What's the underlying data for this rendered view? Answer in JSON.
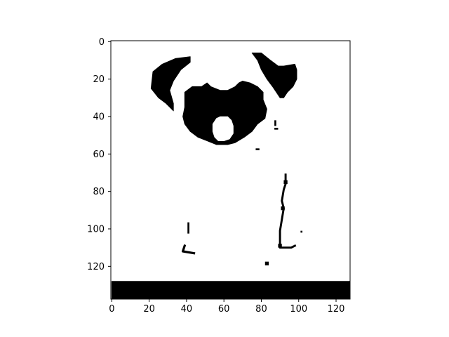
{
  "chart_data": {
    "type": "heatmap",
    "title": "",
    "xlabel": "",
    "ylabel": "",
    "colormap": "binary",
    "colors": {
      "background": "#ffffff",
      "ink": "#000000"
    },
    "image_shape": [
      138,
      128
    ],
    "xlim": [
      -0.5,
      127.5
    ],
    "ylim": [
      137.5,
      -0.5
    ],
    "grid": false,
    "x_ticks": [
      {
        "value": 0,
        "label": "0"
      },
      {
        "value": 20,
        "label": "20"
      },
      {
        "value": 40,
        "label": "40"
      },
      {
        "value": 60,
        "label": "60"
      },
      {
        "value": 80,
        "label": "80"
      },
      {
        "value": 100,
        "label": "100"
      },
      {
        "value": 120,
        "label": "120"
      }
    ],
    "y_ticks": [
      {
        "value": 0,
        "label": "0"
      },
      {
        "value": 20,
        "label": "20"
      },
      {
        "value": 40,
        "label": "40"
      },
      {
        "value": 60,
        "label": "60"
      },
      {
        "value": 80,
        "label": "80"
      },
      {
        "value": 100,
        "label": "100"
      },
      {
        "value": 120,
        "label": "120"
      }
    ],
    "regions": [
      {
        "name": "left-ear",
        "points": [
          [
            22,
            16
          ],
          [
            27,
            12
          ],
          [
            34,
            9
          ],
          [
            42,
            8
          ],
          [
            42,
            11
          ],
          [
            37,
            15
          ],
          [
            33,
            21
          ],
          [
            31,
            26
          ],
          [
            33,
            33
          ],
          [
            33,
            37
          ],
          [
            29,
            33
          ],
          [
            25,
            30
          ],
          [
            21,
            25
          ],
          [
            22,
            16
          ]
        ]
      },
      {
        "name": "right-ear",
        "points": [
          [
            75,
            6
          ],
          [
            80,
            6
          ],
          [
            85,
            10
          ],
          [
            89,
            13
          ],
          [
            92,
            13
          ],
          [
            98,
            12
          ],
          [
            99,
            15
          ],
          [
            99,
            20
          ],
          [
            97,
            24
          ],
          [
            94,
            27
          ],
          [
            92,
            30
          ],
          [
            90,
            30
          ],
          [
            88,
            27
          ],
          [
            86,
            24
          ],
          [
            83,
            20
          ],
          [
            80,
            15
          ],
          [
            78,
            10
          ],
          [
            75,
            6
          ]
        ]
      },
      {
        "name": "face-mask",
        "points": [
          [
            39,
            27
          ],
          [
            43,
            24
          ],
          [
            48,
            24
          ],
          [
            51,
            22
          ],
          [
            53,
            24
          ],
          [
            58,
            26
          ],
          [
            62,
            26
          ],
          [
            66,
            24
          ],
          [
            68,
            22
          ],
          [
            70,
            21
          ],
          [
            74,
            22
          ],
          [
            78,
            24
          ],
          [
            81,
            27
          ],
          [
            81,
            31
          ],
          [
            83,
            36
          ],
          [
            82,
            41
          ],
          [
            78,
            44
          ],
          [
            75,
            48
          ],
          [
            71,
            51
          ],
          [
            66,
            54
          ],
          [
            62,
            55
          ],
          [
            56,
            55
          ],
          [
            51,
            53
          ],
          [
            46,
            51
          ],
          [
            42,
            48
          ],
          [
            39,
            44
          ],
          [
            38,
            40
          ],
          [
            39,
            35
          ],
          [
            39,
            27
          ]
        ]
      },
      {
        "name": "bottom-band",
        "points": [
          [
            0,
            128
          ],
          [
            128,
            128
          ],
          [
            128,
            138
          ],
          [
            0,
            138
          ],
          [
            0,
            128
          ]
        ]
      }
    ],
    "holes": [
      {
        "name": "mouth-opening",
        "points": [
          [
            54,
            44
          ],
          [
            56,
            41
          ],
          [
            58,
            40
          ],
          [
            62,
            40
          ],
          [
            64,
            42
          ],
          [
            65,
            45
          ],
          [
            65,
            49
          ],
          [
            63,
            52
          ],
          [
            60,
            53
          ],
          [
            57,
            53
          ],
          [
            55,
            51
          ],
          [
            54,
            48
          ],
          [
            54,
            44
          ]
        ]
      }
    ],
    "strokes": [
      {
        "name": "right-side-contour",
        "width": 1.1,
        "points": [
          [
            93,
            71
          ],
          [
            93,
            76
          ],
          [
            92,
            79
          ],
          [
            91,
            85
          ],
          [
            92,
            89
          ],
          [
            91,
            95
          ],
          [
            90,
            101
          ],
          [
            90,
            106
          ],
          [
            90,
            110
          ],
          [
            96,
            110
          ],
          [
            98,
            109
          ]
        ]
      },
      {
        "name": "left-leg-contour",
        "width": 1.0,
        "points": [
          [
            41,
            97
          ],
          [
            41,
            102
          ]
        ]
      },
      {
        "name": "left-paw",
        "width": 1.2,
        "points": [
          [
            39,
            109
          ],
          [
            38,
            112
          ],
          [
            44,
            113
          ]
        ]
      }
    ],
    "blobs": [
      {
        "name": "speck-1",
        "x": 87.5,
        "y": 43.5,
        "w": 1,
        "h": 3
      },
      {
        "name": "speck-2",
        "x": 88,
        "y": 46.5,
        "w": 2,
        "h": 1
      },
      {
        "name": "speck-3",
        "x": 78,
        "y": 57.5,
        "w": 2,
        "h": 1
      },
      {
        "name": "speck-4",
        "x": 93,
        "y": 75,
        "w": 2,
        "h": 2
      },
      {
        "name": "speck-5",
        "x": 101.5,
        "y": 101.5,
        "w": 1,
        "h": 1
      },
      {
        "name": "speck-6",
        "x": 83,
        "y": 118.5,
        "w": 2,
        "h": 2
      },
      {
        "name": "speck-7",
        "x": 90,
        "y": 109,
        "w": 2,
        "h": 2
      },
      {
        "name": "speck-8",
        "x": 91.5,
        "y": 89,
        "w": 2,
        "h": 2
      }
    ]
  }
}
